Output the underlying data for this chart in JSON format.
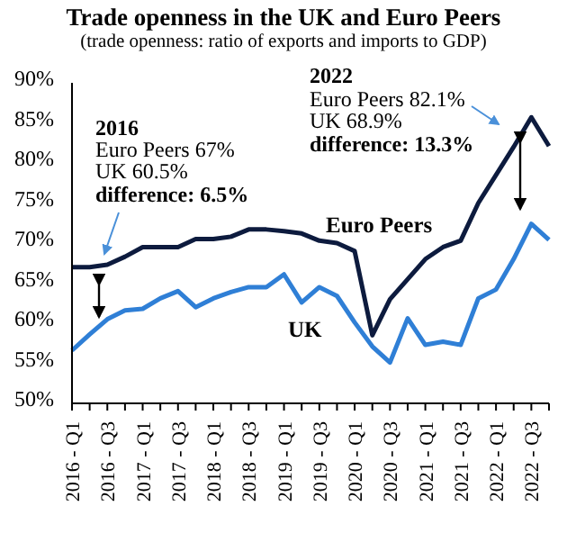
{
  "chart_data": {
    "type": "line",
    "title": "Trade openness in the UK and Euro Peers",
    "subtitle": "(trade openness: ratio of exports and imports to GDP)",
    "categories": [
      "2016 - Q1",
      null,
      "2016 - Q3",
      null,
      "2017 - Q1",
      null,
      "2017 - Q3",
      null,
      "2018 - Q1",
      null,
      "2018 - Q3",
      null,
      "2019 - Q1",
      null,
      "2019 - Q3",
      null,
      "2020 - Q1",
      null,
      "2020 - Q3",
      null,
      "2021 - Q1",
      null,
      "2021 - Q3",
      null,
      "2022 - Q1",
      null,
      "2022 - Q3",
      null
    ],
    "series": [
      {
        "name": "Euro Peers",
        "color": "#0d1b3e",
        "values": [
          67,
          67,
          67.3,
          68.3,
          69.5,
          69.5,
          69.5,
          70.5,
          70.5,
          70.8,
          71.7,
          71.7,
          71.5,
          71.2,
          70.3,
          70,
          69,
          58.5,
          63,
          65.5,
          68,
          69.5,
          70.3,
          75,
          78.5,
          82,
          85.7,
          82.1
        ]
      },
      {
        "name": "UK",
        "color": "#2f7fd6",
        "values": [
          56.6,
          58.6,
          60.5,
          61.6,
          61.8,
          63.1,
          64,
          62,
          63.1,
          63.9,
          64.5,
          64.5,
          66.1,
          62.6,
          64.5,
          63.4,
          60.1,
          57.1,
          55.1,
          60.6,
          57.3,
          57.7,
          57.3,
          63.1,
          64.2,
          68,
          72.4,
          70.4
        ]
      }
    ],
    "ylim": [
      50,
      90
    ],
    "yticks": [
      {
        "value": 50,
        "label": "50%"
      },
      {
        "value": 55,
        "label": "55%"
      },
      {
        "value": 60,
        "label": "60%"
      },
      {
        "value": 65,
        "label": "65%"
      },
      {
        "value": 70,
        "label": "70%"
      },
      {
        "value": 75,
        "label": "75%"
      },
      {
        "value": 80,
        "label": "80%"
      },
      {
        "value": 85,
        "label": "85%"
      },
      {
        "value": 90,
        "label": "90%"
      }
    ],
    "grid": false,
    "legend": false,
    "marker": "none",
    "line_style": "solid",
    "annotations": [
      "2016",
      "Euro Peers 67%",
      "UK 60.5%",
      "difference: 6.5%",
      "2022",
      "Euro Peers 82.1%",
      "UK 68.9%",
      "difference: 13.3%"
    ]
  }
}
